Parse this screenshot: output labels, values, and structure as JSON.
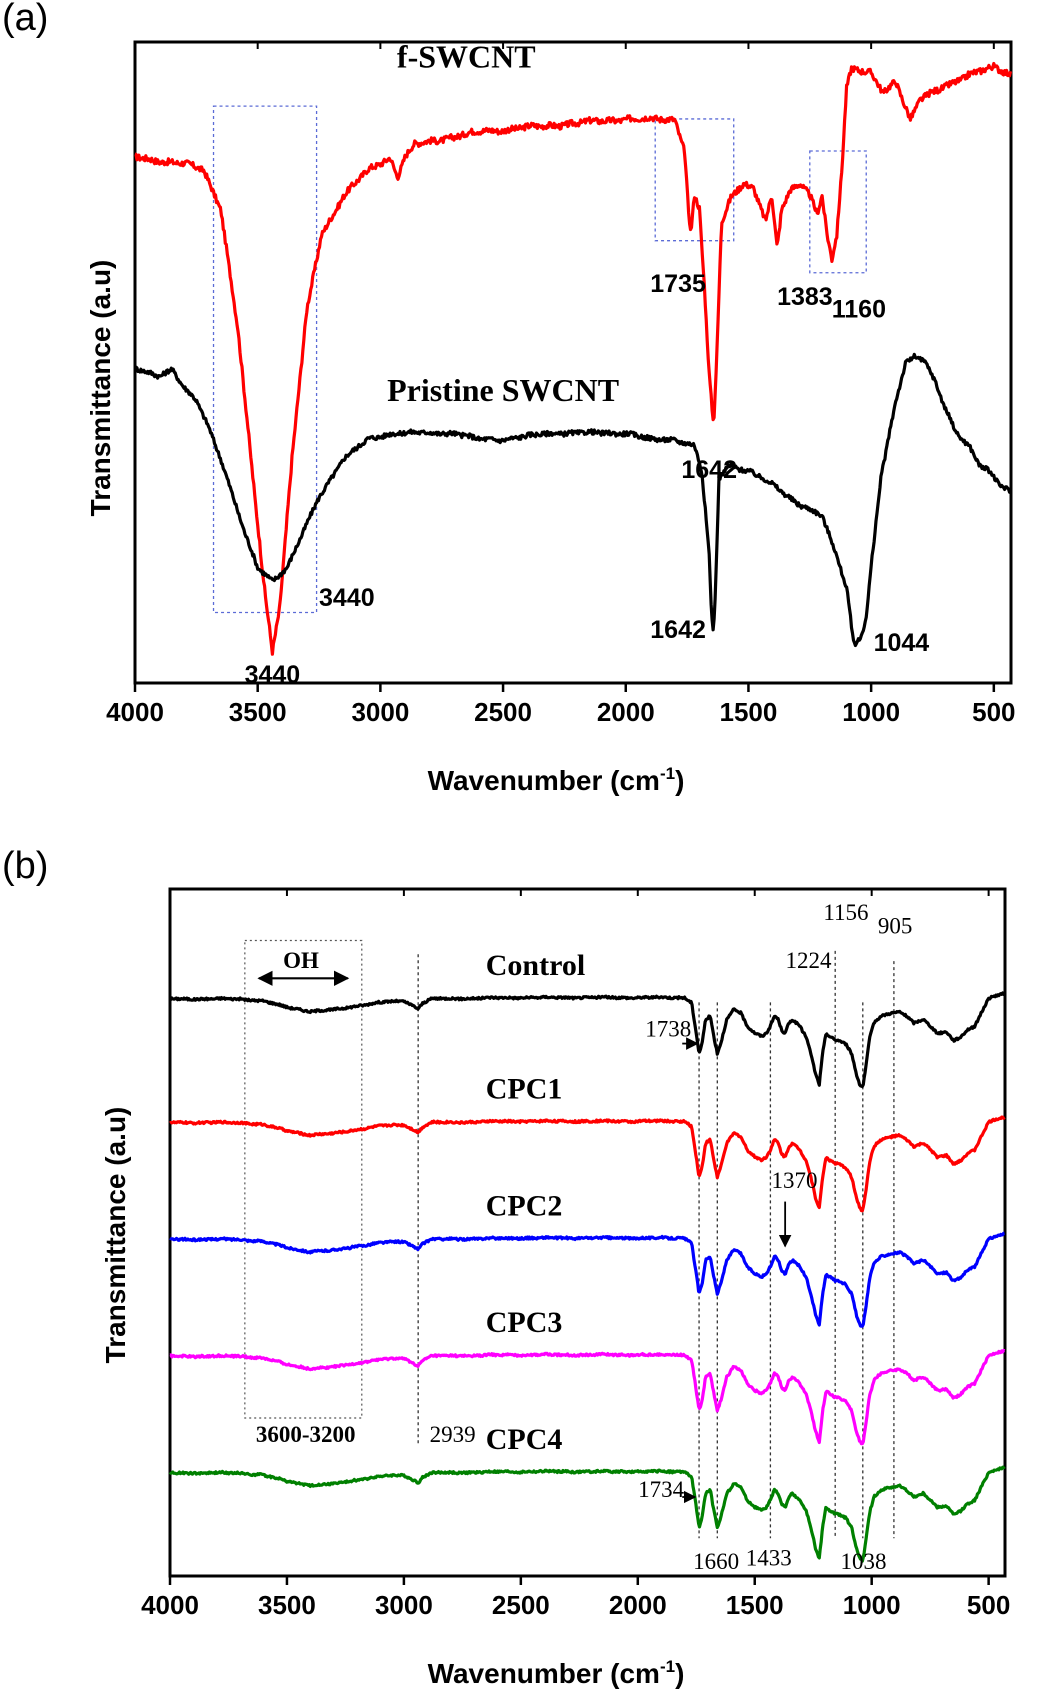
{
  "chart_data": [
    {
      "panel": "(a)",
      "type": "line",
      "xlabel": "Wavenumber (cm",
      "xlabel_sup": "-1",
      "xlabel_end": ")",
      "ylabel": "Transmittance (a.u)",
      "xlim": [
        4000,
        430
      ],
      "x_reversed": true,
      "xticks": [
        "4000",
        "3500",
        "3000",
        "2500",
        "2000",
        "1500",
        "1000",
        "500"
      ],
      "grid": false,
      "series": [
        {
          "name": "f-SWCNT",
          "color": "#ff0000",
          "baseline": 0.82,
          "noise": 0.008,
          "points": [
            [
              4000,
              0.82
            ],
            [
              3800,
              0.81
            ],
            [
              3720,
              0.8
            ],
            [
              3650,
              0.74
            ],
            [
              3580,
              0.55
            ],
            [
              3520,
              0.32
            ],
            [
              3470,
              0.14
            ],
            [
              3440,
              0.05
            ],
            [
              3410,
              0.12
            ],
            [
              3360,
              0.35
            ],
            [
              3300,
              0.58
            ],
            [
              3240,
              0.7
            ],
            [
              3150,
              0.76
            ],
            [
              3050,
              0.8
            ],
            [
              2960,
              0.82
            ],
            [
              2930,
              0.79
            ],
            [
              2900,
              0.82
            ],
            [
              2860,
              0.84
            ],
            [
              2600,
              0.86
            ],
            [
              2300,
              0.87
            ],
            [
              2000,
              0.88
            ],
            [
              1800,
              0.88
            ],
            [
              1760,
              0.83
            ],
            [
              1745,
              0.74
            ],
            [
              1735,
              0.7
            ],
            [
              1720,
              0.76
            ],
            [
              1700,
              0.74
            ],
            [
              1680,
              0.62
            ],
            [
              1660,
              0.48
            ],
            [
              1642,
              0.4
            ],
            [
              1628,
              0.52
            ],
            [
              1610,
              0.72
            ],
            [
              1570,
              0.76
            ],
            [
              1520,
              0.78
            ],
            [
              1480,
              0.77
            ],
            [
              1430,
              0.72
            ],
            [
              1405,
              0.76
            ],
            [
              1383,
              0.68
            ],
            [
              1365,
              0.74
            ],
            [
              1330,
              0.77
            ],
            [
              1290,
              0.78
            ],
            [
              1250,
              0.76
            ],
            [
              1220,
              0.73
            ],
            [
              1200,
              0.76
            ],
            [
              1180,
              0.7
            ],
            [
              1160,
              0.66
            ],
            [
              1140,
              0.7
            ],
            [
              1120,
              0.8
            ],
            [
              1100,
              0.93
            ],
            [
              1080,
              0.96
            ],
            [
              1000,
              0.95
            ],
            [
              950,
              0.92
            ],
            [
              900,
              0.94
            ],
            [
              860,
              0.9
            ],
            [
              840,
              0.88
            ],
            [
              800,
              0.91
            ],
            [
              700,
              0.93
            ],
            [
              600,
              0.95
            ],
            [
              500,
              0.96
            ],
            [
              430,
              0.95
            ]
          ]
        },
        {
          "name": "Pristine SWCNT",
          "color": "#000000",
          "baseline": 0.4,
          "noise": 0.006,
          "points": [
            [
              4000,
              0.49
            ],
            [
              3900,
              0.48
            ],
            [
              3850,
              0.49
            ],
            [
              3800,
              0.46
            ],
            [
              3750,
              0.44
            ],
            [
              3700,
              0.4
            ],
            [
              3650,
              0.35
            ],
            [
              3600,
              0.29
            ],
            [
              3550,
              0.23
            ],
            [
              3500,
              0.18
            ],
            [
              3440,
              0.16
            ],
            [
              3380,
              0.18
            ],
            [
              3320,
              0.23
            ],
            [
              3250,
              0.29
            ],
            [
              3150,
              0.35
            ],
            [
              3050,
              0.38
            ],
            [
              2950,
              0.39
            ],
            [
              2800,
              0.39
            ],
            [
              2700,
              0.39
            ],
            [
              2600,
              0.38
            ],
            [
              2500,
              0.38
            ],
            [
              2300,
              0.39
            ],
            [
              2200,
              0.39
            ],
            [
              2000,
              0.39
            ],
            [
              1900,
              0.38
            ],
            [
              1800,
              0.38
            ],
            [
              1720,
              0.37
            ],
            [
              1690,
              0.33
            ],
            [
              1660,
              0.2
            ],
            [
              1650,
              0.1
            ],
            [
              1642,
              0.08
            ],
            [
              1634,
              0.15
            ],
            [
              1620,
              0.32
            ],
            [
              1580,
              0.34
            ],
            [
              1500,
              0.33
            ],
            [
              1400,
              0.31
            ],
            [
              1300,
              0.28
            ],
            [
              1200,
              0.26
            ],
            [
              1150,
              0.21
            ],
            [
              1100,
              0.15
            ],
            [
              1070,
              0.06
            ],
            [
              1044,
              0.07
            ],
            [
              1020,
              0.1
            ],
            [
              1000,
              0.18
            ],
            [
              960,
              0.32
            ],
            [
              900,
              0.44
            ],
            [
              860,
              0.5
            ],
            [
              820,
              0.51
            ],
            [
              780,
              0.5
            ],
            [
              740,
              0.47
            ],
            [
              700,
              0.43
            ],
            [
              650,
              0.39
            ],
            [
              600,
              0.37
            ],
            [
              560,
              0.34
            ],
            [
              520,
              0.33
            ],
            [
              480,
              0.31
            ],
            [
              430,
              0.3
            ]
          ]
        }
      ],
      "annotations": [
        {
          "text": "3440",
          "x": 3440,
          "y": 0.0,
          "anchor": "middle"
        },
        {
          "text": "1735",
          "x": 1900,
          "y": 0.61,
          "anchor": "start"
        },
        {
          "text": "1642",
          "x": 1660,
          "y": 0.32,
          "anchor": "middle"
        },
        {
          "text": "1383",
          "x": 1270,
          "y": 0.59,
          "anchor": "middle"
        },
        {
          "text": "1160",
          "x": 1050,
          "y": 0.57,
          "anchor": "middle"
        },
        {
          "text": "3440",
          "x": 3250,
          "y": 0.12,
          "anchor": "start"
        },
        {
          "text": "1642",
          "x": 1900,
          "y": 0.07,
          "anchor": "start"
        },
        {
          "text": "1044",
          "x": 990,
          "y": 0.05,
          "anchor": "start"
        }
      ],
      "series_labels": [
        {
          "text": "f-SWCNT",
          "x": 2650,
          "y": 0.96
        },
        {
          "text": "Pristine SWCNT",
          "x": 2500,
          "y": 0.44
        }
      ],
      "dashed_boxes": [
        {
          "x1": 3680,
          "x2": 3260,
          "y1": 0.11,
          "y2": 0.9
        },
        {
          "x1": 1880,
          "x2": 1560,
          "y1": 0.69,
          "y2": 0.88
        },
        {
          "x1": 1250,
          "x2": 1020,
          "y1": 0.64,
          "y2": 0.83
        }
      ]
    },
    {
      "panel": "(b)",
      "type": "line",
      "xlabel": "Wavenumber (cm",
      "xlabel_sup": "-1",
      "xlabel_end": ")",
      "ylabel": "Transmittance (a.u)",
      "xlim": [
        4000,
        430
      ],
      "x_reversed": true,
      "xticks": [
        "4000",
        "3500",
        "3000",
        "2500",
        "2000",
        "1500",
        "1000",
        "500"
      ],
      "grid": false,
      "series": [
        {
          "name": "Control",
          "color": "#000000",
          "offset": 0.84
        },
        {
          "name": "CPC1",
          "color": "#ff0000",
          "offset": 0.66
        },
        {
          "name": "CPC2",
          "color": "#0000ff",
          "offset": 0.49
        },
        {
          "name": "CPC3",
          "color": "#ff00ff",
          "offset": 0.32
        },
        {
          "name": "CPC4",
          "color": "#008000",
          "offset": 0.15
        }
      ],
      "shape_points": [
        [
          4000,
          0.0
        ],
        [
          3800,
          0.0
        ],
        [
          3700,
          0.0
        ],
        [
          3600,
          -0.003
        ],
        [
          3500,
          -0.012
        ],
        [
          3400,
          -0.018
        ],
        [
          3300,
          -0.016
        ],
        [
          3200,
          -0.01
        ],
        [
          3100,
          -0.005
        ],
        [
          3000,
          -0.003
        ],
        [
          2960,
          -0.01
        ],
        [
          2939,
          -0.014
        ],
        [
          2920,
          -0.006
        ],
        [
          2880,
          0.0
        ],
        [
          2500,
          0.002
        ],
        [
          2000,
          0.002
        ],
        [
          1800,
          0.002
        ],
        [
          1770,
          -0.005
        ],
        [
          1750,
          -0.05
        ],
        [
          1738,
          -0.08
        ],
        [
          1725,
          -0.065
        ],
        [
          1710,
          -0.03
        ],
        [
          1690,
          -0.025
        ],
        [
          1675,
          -0.055
        ],
        [
          1660,
          -0.08
        ],
        [
          1645,
          -0.065
        ],
        [
          1620,
          -0.03
        ],
        [
          1590,
          -0.015
        ],
        [
          1560,
          -0.02
        ],
        [
          1530,
          -0.04
        ],
        [
          1500,
          -0.05
        ],
        [
          1470,
          -0.055
        ],
        [
          1450,
          -0.05
        ],
        [
          1433,
          -0.04
        ],
        [
          1415,
          -0.025
        ],
        [
          1400,
          -0.03
        ],
        [
          1385,
          -0.045
        ],
        [
          1370,
          -0.05
        ],
        [
          1355,
          -0.035
        ],
        [
          1340,
          -0.03
        ],
        [
          1310,
          -0.038
        ],
        [
          1280,
          -0.055
        ],
        [
          1260,
          -0.08
        ],
        [
          1240,
          -0.11
        ],
        [
          1224,
          -0.125
        ],
        [
          1210,
          -0.08
        ],
        [
          1195,
          -0.05
        ],
        [
          1180,
          -0.055
        ],
        [
          1156,
          -0.06
        ],
        [
          1140,
          -0.06
        ],
        [
          1110,
          -0.065
        ],
        [
          1085,
          -0.08
        ],
        [
          1065,
          -0.11
        ],
        [
          1050,
          -0.125
        ],
        [
          1038,
          -0.128
        ],
        [
          1025,
          -0.1
        ],
        [
          1010,
          -0.06
        ],
        [
          990,
          -0.035
        ],
        [
          960,
          -0.025
        ],
        [
          930,
          -0.022
        ],
        [
          905,
          -0.02
        ],
        [
          880,
          -0.018
        ],
        [
          850,
          -0.025
        ],
        [
          820,
          -0.035
        ],
        [
          780,
          -0.03
        ],
        [
          750,
          -0.04
        ],
        [
          720,
          -0.05
        ],
        [
          680,
          -0.048
        ],
        [
          650,
          -0.06
        ],
        [
          620,
          -0.055
        ],
        [
          590,
          -0.045
        ],
        [
          560,
          -0.04
        ],
        [
          530,
          -0.02
        ],
        [
          500,
          0.0
        ],
        [
          470,
          0.005
        ],
        [
          430,
          0.008
        ]
      ],
      "vlines": [
        2939,
        1738,
        1660,
        1433,
        1156,
        1038,
        905
      ],
      "dotted_box": {
        "x1": 3680,
        "x2": 3180,
        "y1": 0.23,
        "y2": 0.925
      },
      "oh_arrow": {
        "x1": 3620,
        "x2": 3240,
        "y": 0.87
      },
      "labels": [
        {
          "text": "OH",
          "x": 3440,
          "y": 0.885,
          "size": 23,
          "weight": "bold",
          "anchor": "middle"
        },
        {
          "text": "Control",
          "x": 2650,
          "y": 0.875,
          "size": 30,
          "weight": "bold",
          "anchor": "start"
        },
        {
          "text": "CPC1",
          "x": 2650,
          "y": 0.695,
          "size": 30,
          "weight": "bold",
          "anchor": "start"
        },
        {
          "text": "CPC2",
          "x": 2650,
          "y": 0.525,
          "size": 30,
          "weight": "bold",
          "anchor": "start"
        },
        {
          "text": "CPC3",
          "x": 2650,
          "y": 0.355,
          "size": 30,
          "weight": "bold",
          "anchor": "start"
        },
        {
          "text": "CPC4",
          "x": 2650,
          "y": 0.185,
          "size": 30,
          "weight": "bold",
          "anchor": "start"
        },
        {
          "text": "1156",
          "x": 1110,
          "y": 0.955,
          "size": 23,
          "weight": "normal",
          "anchor": "middle"
        },
        {
          "text": "905",
          "x": 900,
          "y": 0.935,
          "size": 23,
          "weight": "normal",
          "anchor": "middle"
        },
        {
          "text": "1224",
          "x": 1270,
          "y": 0.885,
          "size": 23,
          "weight": "normal",
          "anchor": "middle"
        },
        {
          "text": "1738",
          "x": 1870,
          "y": 0.785,
          "size": 23,
          "weight": "normal",
          "anchor": "middle"
        },
        {
          "text": "1370",
          "x": 1330,
          "y": 0.565,
          "size": 23,
          "weight": "normal",
          "anchor": "middle"
        },
        {
          "text": "2939",
          "x": 2890,
          "y": 0.195,
          "size": 23,
          "weight": "normal",
          "anchor": "start"
        },
        {
          "text": "3600-3200",
          "x": 3420,
          "y": 0.195,
          "size": 23,
          "weight": "bold",
          "anchor": "middle"
        },
        {
          "text": "1734",
          "x": 1900,
          "y": 0.115,
          "size": 23,
          "weight": "normal",
          "anchor": "middle"
        },
        {
          "text": "1660",
          "x": 1665,
          "y": 0.01,
          "size": 23,
          "weight": "normal",
          "anchor": "middle"
        },
        {
          "text": "1433",
          "x": 1440,
          "y": 0.015,
          "size": 23,
          "weight": "normal",
          "anchor": "middle"
        },
        {
          "text": "1038",
          "x": 1035,
          "y": 0.01,
          "size": 23,
          "weight": "normal",
          "anchor": "middle"
        }
      ],
      "arrows": [
        {
          "from": [
            1810,
            0.775
          ],
          "to": [
            1745,
            0.775
          ]
        },
        {
          "from": [
            1810,
            0.115
          ],
          "to": [
            1755,
            0.115
          ]
        },
        {
          "from": [
            1370,
            0.545
          ],
          "to": [
            1370,
            0.48
          ]
        }
      ]
    }
  ]
}
